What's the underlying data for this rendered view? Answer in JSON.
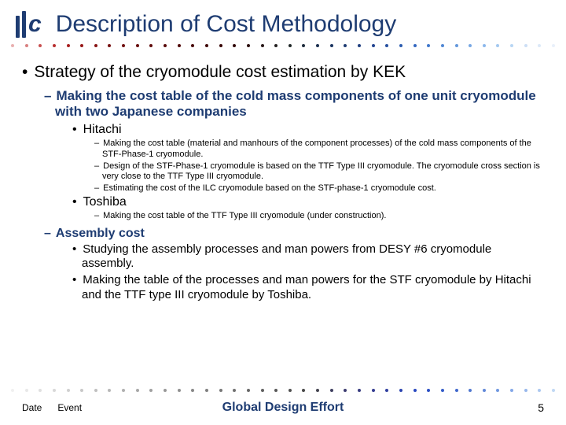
{
  "title": "Description of Cost Methodology",
  "dot_colors": [
    "#e8b0b0",
    "#d88080",
    "#c85050",
    "#b83030",
    "#a82020",
    "#981818",
    "#881414",
    "#781212",
    "#701010",
    "#680e0e",
    "#600c0c",
    "#580a0a",
    "#500909",
    "#480808",
    "#400707",
    "#380606",
    "#300606",
    "#2c1010",
    "#281818",
    "#242020",
    "#202828",
    "#1e2c3c",
    "#1c3050",
    "#1a3460",
    "#1e3c72",
    "#204080",
    "#224490",
    "#2650a0",
    "#2c5cb0",
    "#3468c0",
    "#4078cc",
    "#5088d4",
    "#6498dc",
    "#78a8e4",
    "#8cb8ec",
    "#a4c8f0",
    "#b8d6f4",
    "#ccdff6",
    "#dce8f8",
    "#e8f0fa"
  ],
  "bottom_dot_colors": [
    "#f0f0f0",
    "#e8e8e8",
    "#e0e0e0",
    "#d8d8d8",
    "#d0d0d0",
    "#c8c8c8",
    "#c0c0c0",
    "#b8b8b8",
    "#b0b0b0",
    "#a8a8a8",
    "#a0a0a0",
    "#989898",
    "#909090",
    "#888888",
    "#808080",
    "#787878",
    "#707070",
    "#686868",
    "#606060",
    "#585858",
    "#505050",
    "#484848",
    "#444450",
    "#404060",
    "#3c3c70",
    "#383c80",
    "#343c90",
    "#3040a0",
    "#2c44b0",
    "#2848c0",
    "#2c50c4",
    "#345cc8",
    "#4068cc",
    "#5078d0",
    "#6088d8",
    "#7098e0",
    "#84a8e8",
    "#98b8ec",
    "#acc8f0",
    "#c0d8f4"
  ],
  "lvl1": "Strategy of the cryomodule cost estimation by KEK",
  "lvl2_a": "Making the cost table of the cold mass components of one unit cryomodule with two Japanese companies",
  "hitachi": "Hitachi",
  "hitachi_items": [
    "Making the cost table (material and manhours of the component processes) of the cold mass components of the STF-Phase-1 cryomodule.",
    "Design of the STF-Phase-1 cryomodule is based on the TTF Type III cryomodule. The cryomodule cross section is very close to the TTF Type III cryomodule.",
    "Estimating the cost of the ILC cryomodule based on the STF-phase-1 cryomodule cost."
  ],
  "toshiba": "Toshiba",
  "toshiba_items": [
    "Making the cost table of the TTF Type III cryomodule (under construction)."
  ],
  "assembly": "Assembly cost",
  "assembly_items": [
    "Studying the assembly processes and man powers from DESY #6 cryomodule assembly.",
    "Making the table of the processes and man powers for the STF cryomodule by Hitachi and the TTF type III cryomodule by Toshiba."
  ],
  "footer": {
    "date": "Date",
    "event": "Event",
    "center": "Global Design Effort",
    "page": "5"
  }
}
